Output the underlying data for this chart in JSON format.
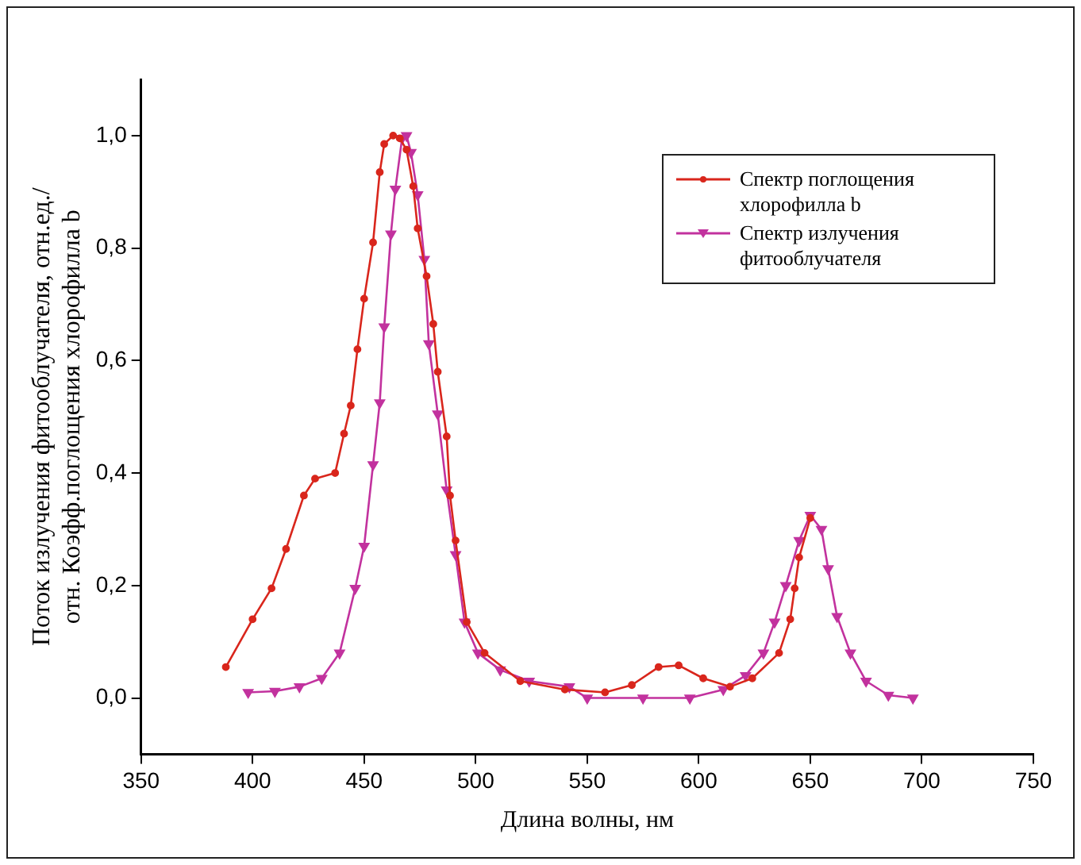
{
  "chart_data": {
    "type": "line",
    "xlabel": "Длина волны, нм",
    "ylabel": [
      "Поток излучения фитооблучателя, отн.ед./",
      "отн. Коэфф.поглощения хлорофилла b"
    ],
    "xlim": [
      350,
      750
    ],
    "xticks": [
      350,
      400,
      450,
      500,
      550,
      600,
      650,
      700,
      750
    ],
    "ylim": [
      -0.1,
      1.1
    ],
    "yticks": [
      {
        "value": 0,
        "label": "0,0"
      },
      {
        "value": 0.2,
        "label": "0,2"
      },
      {
        "value": 0.4,
        "label": "0,4"
      },
      {
        "value": 0.6,
        "label": "0,6"
      },
      {
        "value": 0.8,
        "label": "0,8"
      },
      {
        "value": 1,
        "label": "1,0"
      }
    ],
    "grid": false,
    "legend": "top right",
    "line_style": "solid",
    "series": [
      {
        "name": "Спектр поглощения хлорофилла b",
        "color": "#d9261c",
        "marker": "circle",
        "x": [
          388,
          400,
          408.5,
          415,
          423,
          428,
          437,
          441,
          444,
          447,
          450,
          454,
          457,
          459,
          463,
          466,
          469,
          472,
          474,
          478,
          481,
          483,
          487,
          488.5,
          491,
          496,
          504,
          520,
          540,
          558,
          570,
          582,
          591,
          602,
          614,
          624,
          636,
          641,
          643,
          645,
          650
        ],
        "values": [
          0.055,
          0.14,
          0.195,
          0.265,
          0.36,
          0.39,
          0.4,
          0.47,
          0.52,
          0.62,
          0.71,
          0.81,
          0.935,
          0.985,
          1.0,
          0.995,
          0.975,
          0.91,
          0.835,
          0.75,
          0.665,
          0.58,
          0.465,
          0.36,
          0.28,
          0.135,
          0.08,
          0.03,
          0.015,
          0.01,
          0.023,
          0.055,
          0.058,
          0.035,
          0.02,
          0.035,
          0.08,
          0.14,
          0.195,
          0.25,
          0.32
        ]
      },
      {
        "name": "Спектр излучения фитооблучателя",
        "color": "#c2329e",
        "marker": "triangle",
        "x": [
          398,
          410,
          421,
          431,
          439,
          446,
          450,
          454,
          457,
          459,
          462,
          464,
          467,
          469,
          471,
          474,
          477,
          479,
          483,
          487,
          491,
          495,
          501,
          511,
          524,
          542,
          550,
          575,
          596,
          611,
          621,
          629,
          634,
          639,
          645,
          650,
          655,
          658,
          662,
          668,
          675,
          685,
          696
        ],
        "values": [
          0.01,
          0.012,
          0.02,
          0.035,
          0.08,
          0.195,
          0.27,
          0.415,
          0.525,
          0.66,
          0.825,
          0.905,
          0.995,
          1.0,
          0.97,
          0.895,
          0.78,
          0.63,
          0.505,
          0.37,
          0.255,
          0.135,
          0.08,
          0.05,
          0.03,
          0.02,
          0,
          0,
          0,
          0.015,
          0.04,
          0.08,
          0.135,
          0.2,
          0.28,
          0.325,
          0.3,
          0.23,
          0.145,
          0.08,
          0.03,
          0.005,
          0
        ]
      }
    ]
  }
}
